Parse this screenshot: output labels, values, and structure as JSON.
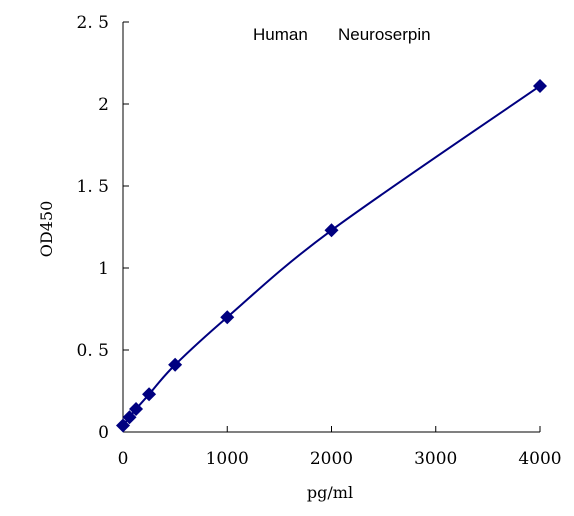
{
  "chart_data": {
    "type": "scatter",
    "title_words": [
      "Human",
      "Neuroserpin"
    ],
    "xlabel": "pg/ml",
    "ylabel": "OD450",
    "xlim": [
      0,
      4000
    ],
    "ylim": [
      0,
      2.5
    ],
    "x_ticks": [
      0,
      1000,
      2000,
      3000,
      4000
    ],
    "x_tick_labels": [
      "0",
      "1000",
      "2000",
      "3000",
      "4000"
    ],
    "y_ticks": [
      0,
      0.5,
      1,
      1.5,
      2,
      2.5
    ],
    "y_tick_labels": [
      "0",
      "0. 5",
      "1",
      "1. 5",
      "2",
      "2. 5"
    ],
    "grid": false,
    "legend": "none",
    "series": [
      {
        "marker": "diamond",
        "color": "#000080",
        "fit_line": "smooth",
        "points": [
          {
            "x": 0,
            "y": 0.04
          },
          {
            "x": 62.5,
            "y": 0.09
          },
          {
            "x": 125,
            "y": 0.14
          },
          {
            "x": 250,
            "y": 0.23
          },
          {
            "x": 500,
            "y": 0.41
          },
          {
            "x": 1000,
            "y": 0.7
          },
          {
            "x": 2000,
            "y": 1.23
          },
          {
            "x": 4000,
            "y": 2.11
          }
        ]
      }
    ]
  }
}
